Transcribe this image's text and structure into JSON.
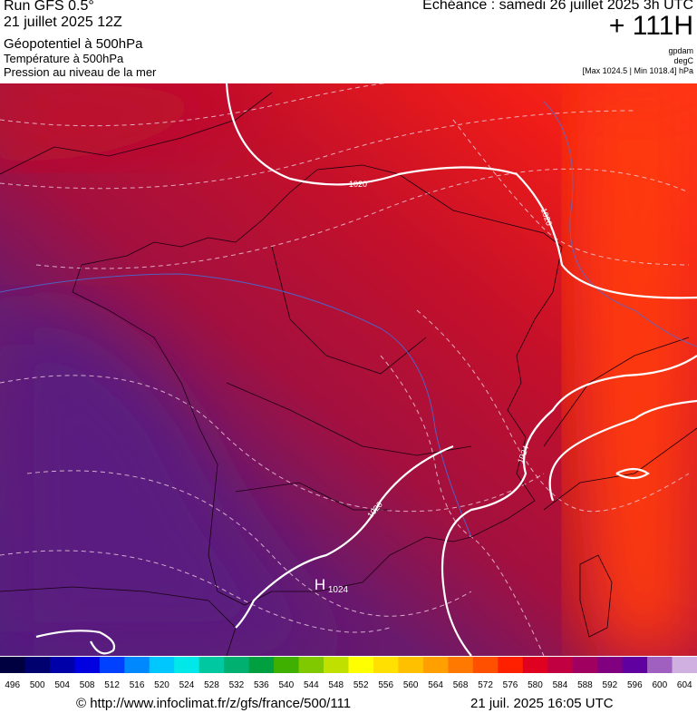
{
  "header": {
    "run": "Run GFS 0.5°",
    "date": "21 juillet 2025 12Z",
    "layers": [
      "Géopotentiel à 500hPa",
      "Température à 500hPa",
      "Pression au niveau de la mer"
    ],
    "valid": "Echéance : samedi 26 juillet 2025 3h UTC",
    "lead": "+ 111H",
    "units": [
      "gpdam",
      "degC",
      "[Max 1024.5 | Min 1018.4] hPa"
    ]
  },
  "map": {
    "isobar_labels": [
      "1020",
      "1020",
      "1024",
      "1020"
    ],
    "high": "H",
    "high_value": "1024"
  },
  "legend": {
    "values": [
      496,
      500,
      504,
      508,
      512,
      516,
      520,
      524,
      528,
      532,
      536,
      540,
      544,
      548,
      552,
      556,
      560,
      564,
      568,
      572,
      576,
      580,
      584,
      588,
      592,
      596,
      600,
      604
    ],
    "colors": [
      "#000040",
      "#00006e",
      "#0000a8",
      "#0000e0",
      "#0040ff",
      "#0088ff",
      "#00c8ff",
      "#00e8e8",
      "#00c8a0",
      "#00b070",
      "#00a040",
      "#40b000",
      "#80c800",
      "#c0e000",
      "#ffff00",
      "#ffe000",
      "#ffc000",
      "#ffa000",
      "#ff7800",
      "#ff5000",
      "#ff2000",
      "#e00020",
      "#c00040",
      "#a00060",
      "#800080",
      "#6000a0",
      "#a060c0",
      "#d0b0e0"
    ]
  },
  "footer": {
    "source": "© http://www.infoclimat.fr/z/gfs/france/500/111",
    "timestamp": "21 juil. 2025 16:05 UTC"
  }
}
